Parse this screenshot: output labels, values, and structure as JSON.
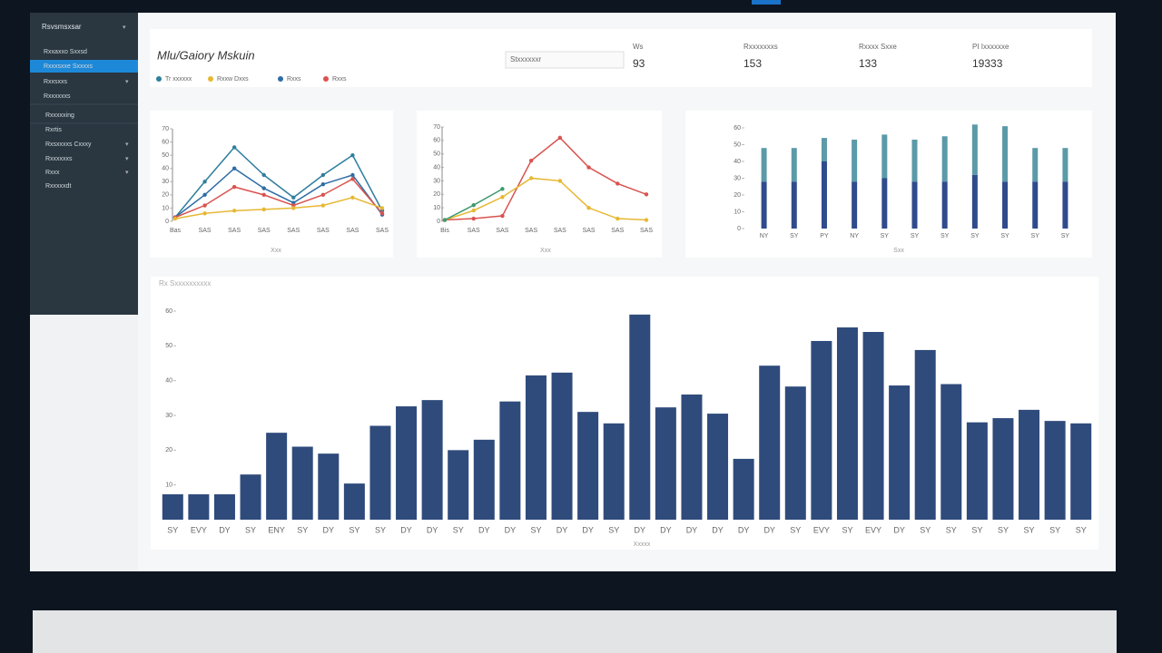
{
  "sidebar": {
    "title": "Rsvsmsxsar",
    "active": 1,
    "items": [
      "Rxxaxxo Sxxsd",
      "Rxxxsxxe Sxxxxs",
      "Rxxsxxs",
      "Rxxxxxxs",
      "Rxxxxxing",
      "Rxrtis",
      "Rxsxxxxs Cxxxy",
      "Rxxxxxxs",
      "Rxxx",
      "Rxxxxxdt"
    ]
  },
  "header": {
    "title": "Mlu/Gaiory Mskuin",
    "search": "Stxxxxxxr",
    "legend": [
      {
        "label": "Tr xxxxxx",
        "color": "#2f7f9e"
      },
      {
        "label": "Rxxw Dxxs",
        "color": "#e6b833"
      },
      {
        "label": "Rxxs",
        "color": "#2e6da4"
      },
      {
        "label": "Rxxs",
        "color": "#d9534f"
      }
    ]
  },
  "stats": [
    {
      "label": "Ws",
      "value": 93
    },
    {
      "label": "Rxxxxxxxs",
      "value": 153
    },
    {
      "label": "Rxxxx Sxxe",
      "value": 133
    },
    {
      "label": "PI Ixxxxxxe",
      "value": 19333
    }
  ],
  "chart_data": [
    {
      "type": "line",
      "x_label": "Xxx",
      "categories": [
        "Bas",
        "SAS",
        "SAS",
        "SAS",
        "SAS",
        "SAS",
        "SAS",
        "SAS"
      ],
      "series": [
        {
          "color": "#2f7f9e",
          "values": [
            3,
            30,
            56,
            35,
            18,
            35,
            50,
            8
          ]
        },
        {
          "color": "#2e6da4",
          "values": [
            3,
            20,
            40,
            25,
            14,
            28,
            35,
            5
          ]
        },
        {
          "color": "#d9534f",
          "values": [
            3,
            12,
            26,
            20,
            12,
            20,
            32,
            6
          ]
        },
        {
          "color": "#e6b833",
          "values": [
            2,
            6,
            8,
            9,
            10,
            12,
            18,
            10
          ]
        }
      ],
      "ylim": [
        0,
        70
      ],
      "yticks": [
        0,
        10,
        20,
        30,
        40,
        50,
        60,
        70
      ]
    },
    {
      "type": "line",
      "x_label": "Xxx",
      "categories": [
        "Bis",
        "SAS",
        "SAS",
        "SAS",
        "SAS",
        "SAS",
        "SAS",
        "SAS"
      ],
      "series": [
        {
          "color": "#d9534f",
          "values": [
            1,
            2,
            4,
            45,
            62,
            40,
            28,
            20
          ]
        },
        {
          "color": "#e6b833",
          "values": [
            1,
            8,
            18,
            32,
            30,
            10,
            2,
            1
          ]
        },
        {
          "color": "#3f9a6e",
          "values": [
            1,
            12,
            24,
            null,
            null,
            null,
            null,
            null
          ]
        }
      ],
      "ylim": [
        0,
        70
      ],
      "yticks": [
        0,
        10,
        20,
        30,
        40,
        50,
        60,
        70
      ]
    },
    {
      "type": "bar",
      "x_label": "Sxx",
      "categories": [
        "NY",
        "SY",
        "PY",
        "NY",
        "SY",
        "SY",
        "SY",
        "SY",
        "SY",
        "SY",
        "SY"
      ],
      "series": [
        {
          "color": "#2f4b8c",
          "values": [
            28,
            28,
            40,
            28,
            30,
            28,
            28,
            32,
            28,
            28,
            28
          ]
        },
        {
          "color": "#5b9aa8",
          "values": [
            20,
            20,
            14,
            25,
            26,
            25,
            27,
            30,
            33,
            20,
            20
          ]
        }
      ],
      "ylim": [
        0,
        60
      ],
      "yticks": [
        0,
        10,
        20,
        30,
        40,
        50,
        60
      ]
    },
    {
      "type": "bar",
      "title": "Rx Sxxxxxxxxxx",
      "x_label": "Xxxxx",
      "categories": [
        "SY",
        "EVY",
        "DY",
        "SY",
        "ENY",
        "SY",
        "DY",
        "SY",
        "SY",
        "DY",
        "DY",
        "SY",
        "DY",
        "DY",
        "SY",
        "DY",
        "DY",
        "SY",
        "DY",
        "DY",
        "DY",
        "DY",
        "DY",
        "DY",
        "SY",
        "EVY",
        "SY",
        "EVY",
        "DY",
        "SY",
        "SY",
        "SY",
        "SY",
        "SY",
        "SY",
        "SY"
      ],
      "color": "#2f4b7c",
      "values": [
        7.3,
        7.3,
        7.3,
        13,
        25,
        21,
        19,
        10.4,
        27,
        32.6,
        34.4,
        20,
        23,
        34,
        41.5,
        42.3,
        31,
        27.7,
        59,
        32.3,
        36,
        30.5,
        17.5,
        44.3,
        38.3,
        51.4,
        55.3,
        54,
        38.6,
        48.8,
        39,
        28,
        29.2,
        31.6,
        28.4,
        27.7
      ],
      "ylim": [
        0,
        60
      ],
      "yticks": [
        10,
        20,
        30,
        40,
        50,
        60
      ]
    }
  ]
}
